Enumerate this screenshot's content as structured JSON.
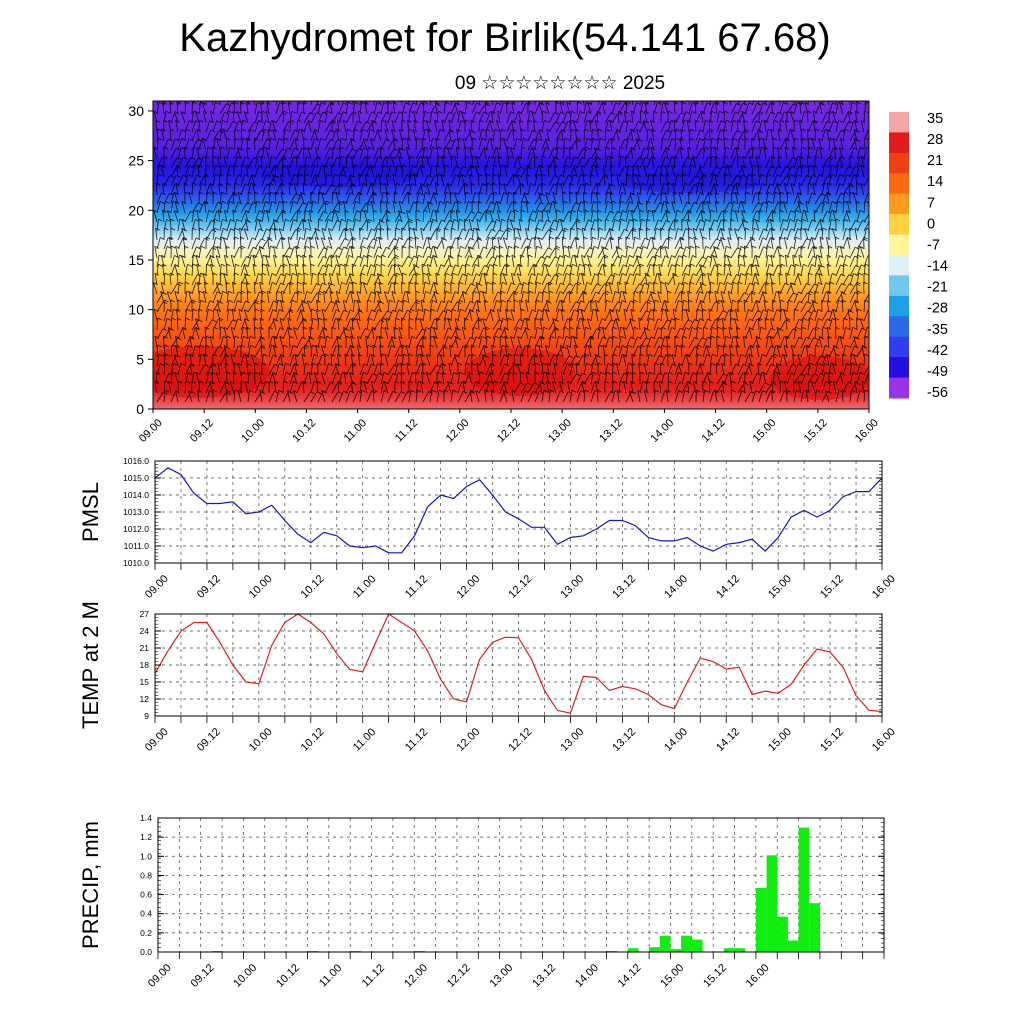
{
  "title": "Kazhydromet for Birlik(54.141 67.68)",
  "subtitle": "09 ☆☆☆☆☆☆☆☆ 2025",
  "chart_data": [
    {
      "type": "heatmap",
      "name": "temperature-wind cross section",
      "x_tick_labels": [
        "09.00",
        "09.12",
        "10.00",
        "10.12",
        "11.00",
        "11.12",
        "12.00",
        "12.12",
        "13.00",
        "13.12",
        "14.00",
        "14.12",
        "15.00",
        "15.12",
        "16.00"
      ],
      "y_ticks": [
        0,
        5,
        10,
        15,
        20,
        25,
        30
      ],
      "ylim": [
        0,
        31
      ],
      "colorbar_labels": [
        "35",
        "28",
        "21",
        "14",
        "7",
        "0",
        "-7",
        "-14",
        "-21",
        "-28",
        "-35",
        "-42",
        "-49",
        "-56"
      ],
      "colorbar_colors": [
        "#f4a6a6",
        "#e31a1c",
        "#f04010",
        "#ff6a10",
        "#ff9a20",
        "#ffd040",
        "#fff59a",
        "#e0f0f8",
        "#70c8ee",
        "#1ea0e8",
        "#2a6ae8",
        "#2f3cf0",
        "#2310e0",
        "#9a32e6"
      ],
      "profile_levels_km": [
        0,
        5,
        10,
        14,
        17,
        20,
        22.5,
        26,
        31
      ],
      "profile_temps": [
        32,
        22,
        12,
        -3,
        -14,
        -30,
        -45,
        -52,
        -54
      ],
      "grid": false
    },
    {
      "type": "line",
      "ylabel": "PMSL",
      "color": "#1515d0",
      "x_tick_labels": [
        "09.00",
        "09.12",
        "10.00",
        "10.12",
        "11.00",
        "11.12",
        "12.00",
        "12.12",
        "13.00",
        "13.12",
        "14.00",
        "14.12",
        "15.00",
        "15.12",
        "16.00"
      ],
      "y_tick_labels": [
        "1010.0",
        "1011.0",
        "1012.0",
        "1013.0",
        "1014.0",
        "1015.0",
        "1016.0"
      ],
      "ylim": [
        1010,
        1016
      ],
      "x": [
        0,
        3,
        6,
        9,
        12,
        15,
        18,
        21,
        24,
        27,
        30,
        33,
        36,
        39,
        42,
        45,
        48,
        51,
        54,
        57,
        60,
        63,
        66,
        69,
        72,
        75,
        78,
        81,
        84,
        87,
        90,
        93,
        96,
        99,
        102,
        105,
        108,
        111,
        114,
        117,
        120,
        123,
        126,
        129,
        132,
        135,
        138,
        141,
        144,
        147,
        150,
        153,
        156,
        159,
        162,
        165,
        168
      ],
      "values": [
        1015.0,
        1015.6,
        1015.2,
        1014.1,
        1013.5,
        1013.5,
        1013.6,
        1012.9,
        1013.0,
        1013.4,
        1012.5,
        1011.7,
        1011.2,
        1011.8,
        1011.6,
        1011.0,
        1010.9,
        1011.0,
        1010.6,
        1010.6,
        1011.6,
        1013.3,
        1014.0,
        1013.8,
        1014.5,
        1014.9,
        1014.0,
        1013.0,
        1012.6,
        1012.1,
        1012.1,
        1011.1,
        1011.5,
        1011.6,
        1012.0,
        1012.5,
        1012.5,
        1012.2,
        1011.5,
        1011.3,
        1011.3,
        1011.5,
        1011.0,
        1010.7,
        1011.1,
        1011.2,
        1011.4,
        1010.7,
        1011.5,
        1012.7,
        1013.1,
        1012.7,
        1013.1,
        1013.9,
        1014.2,
        1014.2,
        1015.0
      ],
      "grid": true
    },
    {
      "type": "line",
      "ylabel": "TEMP at 2 M",
      "color": "#e0201a",
      "x_tick_labels": [
        "09.00",
        "09.12",
        "10.00",
        "10.12",
        "11.00",
        "11.12",
        "12.00",
        "12.12",
        "13.00",
        "13.12",
        "14.00",
        "14.12",
        "15.00",
        "15.12",
        "16.00"
      ],
      "y_tick_labels": [
        "9",
        "12",
        "15",
        "18",
        "21",
        "24",
        "27"
      ],
      "ylim": [
        9,
        27
      ],
      "x": [
        0,
        3,
        6,
        9,
        12,
        15,
        18,
        21,
        24,
        27,
        30,
        33,
        36,
        39,
        42,
        45,
        48,
        51,
        54,
        57,
        60,
        63,
        66,
        69,
        72,
        75,
        78,
        81,
        84,
        87,
        90,
        93,
        96,
        99,
        102,
        105,
        108,
        111,
        114,
        117,
        120,
        123,
        126,
        129,
        132,
        135,
        138,
        141,
        144,
        147,
        150,
        153,
        156,
        159,
        162,
        165,
        168
      ],
      "values": [
        16.5,
        20.5,
        24.0,
        25.5,
        25.5,
        22.0,
        18.0,
        15.0,
        14.7,
        21.5,
        25.5,
        27.0,
        25.5,
        23.5,
        20.0,
        17.2,
        16.8,
        22.0,
        27.0,
        25.5,
        24.0,
        20.5,
        15.5,
        12.0,
        11.5,
        19.0,
        22.0,
        22.9,
        22.8,
        19.0,
        13.5,
        10.0,
        9.5,
        16.0,
        15.8,
        13.5,
        14.2,
        13.8,
        12.8,
        11.0,
        10.3,
        15.0,
        19.2,
        18.6,
        17.3,
        17.6,
        12.8,
        13.4,
        13.0,
        14.6,
        18.0,
        20.8,
        20.3,
        17.6,
        12.6,
        10.0,
        9.8
      ],
      "grid": true
    },
    {
      "type": "bar",
      "ylabel": "PRECIP, mm",
      "color": "#10ee10",
      "x_tick_labels": [
        "09.00",
        "09.12",
        "10.00",
        "10.12",
        "11.00",
        "11.12",
        "12.00",
        "12.12",
        "13.00",
        "13.12",
        "14.00",
        "14.12",
        "15.00",
        "15.12",
        "16.00"
      ],
      "y_tick_labels": [
        "0.0",
        "0.2",
        "0.4",
        "0.6",
        "0.8",
        "1.0",
        "1.2",
        "1.4"
      ],
      "ylim": [
        0,
        1.4
      ],
      "x": [
        16.5,
        43.5,
        55.5,
        73.5,
        127.5,
        133.5,
        139.5,
        142.5,
        145.5,
        148.5,
        151.5,
        160.5,
        163.5,
        169.5,
        172.5,
        175.5,
        178.5,
        181.5,
        184.5,
        187.5,
        190.5,
        193.5
      ],
      "values": [
        0.01,
        0.01,
        0.01,
        0.01,
        0.01,
        0.04,
        0.05,
        0.17,
        0.03,
        0.17,
        0.13,
        0.04,
        0.04,
        0.67,
        1.01,
        0.37,
        0.12,
        1.3,
        0.51,
        0.0,
        0.0,
        0.0
      ],
      "bar_width_hours": 3,
      "grid": true
    }
  ]
}
